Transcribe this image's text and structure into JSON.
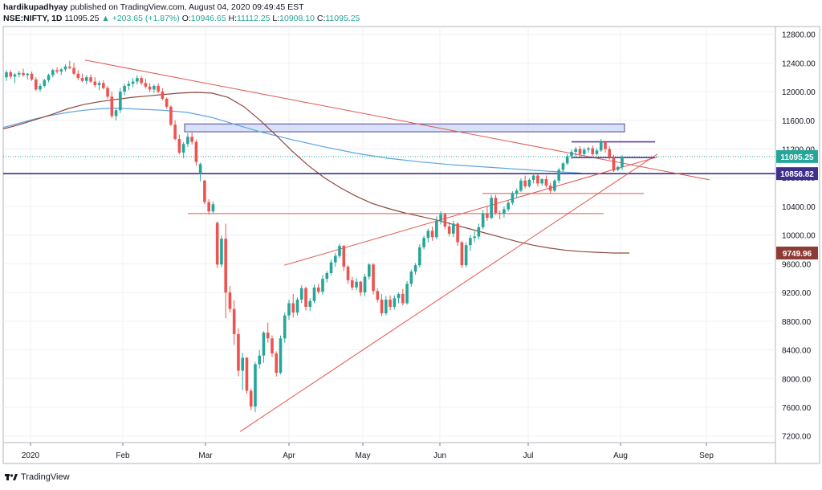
{
  "header": {
    "author": "hardikupadhyay",
    "published": "published on TradingView.com, August 04, 2020 09:49:45 EST",
    "symbol": "NSE:NIFTY, 1D",
    "last": "11095.25",
    "arrow": "▲",
    "change": "+203.65 (+1.87%)",
    "o_label": "O:",
    "o": "10946.65",
    "h_label": "H:",
    "h": "11112.25",
    "l_label": "L:",
    "l": "10908.10",
    "c_label": "C:",
    "c": "11095.25"
  },
  "footer": {
    "brand": "TradingView"
  },
  "colors": {
    "up": "#26a69a",
    "down": "#ef5350",
    "ma_blue": "#5aa5e0",
    "ma_brown": "#8d4a3c",
    "trend": "#e0584f",
    "purple": "#5b3f9e",
    "zone_fill": "#c9d8f5"
  },
  "chart_data": {
    "type": "candlestick",
    "ylim": [
      7100,
      12900
    ],
    "y_ticks": [
      "7200.00",
      "7600.00",
      "8000.00",
      "8400.00",
      "8800.00",
      "9200.00",
      "9600.00",
      "10000.00",
      "10400.00",
      "10800.00",
      "11200.00",
      "11600.00",
      "12000.00",
      "12400.00",
      "12800.00"
    ],
    "x_ticks": [
      "2020",
      "Feb",
      "Mar",
      "Apr",
      "May",
      "Jun",
      "Jul",
      "Aug",
      "Sep"
    ],
    "price_labels": [
      {
        "value": 11095.25,
        "text": "11095.25",
        "color": "#26a69a"
      },
      {
        "value": 10856.82,
        "text": "10856.82",
        "color": "#3f2f8f"
      },
      {
        "value": 9749.96,
        "text": "9749.96",
        "color": "#8d3b35"
      }
    ],
    "candles": [
      [
        12200,
        12300,
        12150,
        12270
      ],
      [
        12270,
        12300,
        12180,
        12210
      ],
      [
        12210,
        12260,
        12120,
        12240
      ],
      [
        12240,
        12290,
        12200,
        12260
      ],
      [
        12260,
        12320,
        12210,
        12230
      ],
      [
        12230,
        12260,
        12170,
        12250
      ],
      [
        12250,
        12280,
        12150,
        12170
      ],
      [
        12170,
        12200,
        12010,
        12030
      ],
      [
        12030,
        12110,
        12000,
        12080
      ],
      [
        12080,
        12180,
        12060,
        12160
      ],
      [
        12160,
        12250,
        12130,
        12230
      ],
      [
        12230,
        12320,
        12200,
        12300
      ],
      [
        12300,
        12340,
        12250,
        12280
      ],
      [
        12280,
        12330,
        12230,
        12310
      ],
      [
        12310,
        12380,
        12280,
        12350
      ],
      [
        12350,
        12430,
        12310,
        12330
      ],
      [
        12330,
        12400,
        12230,
        12250
      ],
      [
        12250,
        12300,
        12160,
        12190
      ],
      [
        12190,
        12250,
        12130,
        12150
      ],
      [
        12150,
        12230,
        12100,
        12200
      ],
      [
        12200,
        12240,
        12120,
        12140
      ],
      [
        12140,
        12200,
        12060,
        12090
      ],
      [
        12090,
        12150,
        12020,
        12120
      ],
      [
        12120,
        12160,
        12030,
        12050
      ],
      [
        12050,
        12080,
        11900,
        11930
      ],
      [
        11930,
        12000,
        11630,
        11660
      ],
      [
        11660,
        11760,
        11600,
        11740
      ],
      [
        11740,
        12050,
        11700,
        12000
      ],
      [
        12000,
        12110,
        11950,
        12080
      ],
      [
        12080,
        12150,
        12020,
        12110
      ],
      [
        12110,
        12190,
        12060,
        12140
      ],
      [
        12140,
        12230,
        12100,
        12190
      ],
      [
        12190,
        12220,
        12090,
        12120
      ],
      [
        12120,
        12180,
        12040,
        12070
      ],
      [
        12070,
        12120,
        11990,
        12030
      ],
      [
        12030,
        12100,
        11980,
        12080
      ],
      [
        12080,
        12120,
        11980,
        12000
      ],
      [
        12000,
        12050,
        11880,
        11900
      ],
      [
        11900,
        11920,
        11760,
        11790
      ],
      [
        11790,
        11810,
        11520,
        11540
      ],
      [
        11540,
        11600,
        11320,
        11340
      ],
      [
        11340,
        11400,
        11130,
        11150
      ],
      [
        11150,
        11300,
        11070,
        11270
      ],
      [
        11270,
        11420,
        11230,
        11370
      ],
      [
        11370,
        11430,
        11260,
        11300
      ],
      [
        11300,
        11330,
        10970,
        11020
      ],
      [
        10870,
        11010,
        10750,
        10990
      ],
      [
        10760,
        10770,
        10430,
        10460
      ],
      [
        10460,
        10500,
        10290,
        10330
      ],
      [
        10330,
        10470,
        10300,
        10430
      ],
      [
        10170,
        10190,
        9540,
        9590
      ],
      [
        9590,
        9990,
        9550,
        9950
      ],
      [
        9950,
        10160,
        8840,
        9200
      ],
      [
        9200,
        9290,
        8920,
        8970
      ],
      [
        8970,
        9090,
        8470,
        8620
      ],
      [
        8620,
        8700,
        8030,
        8110
      ],
      [
        8110,
        8360,
        7840,
        8290
      ],
      [
        8290,
        8300,
        7790,
        7830
      ],
      [
        7830,
        7860,
        7560,
        7610
      ],
      [
        7610,
        8230,
        7530,
        8200
      ],
      [
        8200,
        8400,
        8140,
        8320
      ],
      [
        8320,
        8660,
        8220,
        8640
      ],
      [
        8640,
        8780,
        8500,
        8560
      ],
      [
        8560,
        8600,
        8300,
        8350
      ],
      [
        8350,
        8380,
        8030,
        8080
      ],
      [
        8080,
        8600,
        8060,
        8560
      ],
      [
        8560,
        8920,
        8500,
        8880
      ],
      [
        8880,
        9100,
        8820,
        9050
      ],
      [
        9050,
        9180,
        8850,
        8920
      ],
      [
        8920,
        9130,
        8880,
        9100
      ],
      [
        9100,
        9300,
        9050,
        9260
      ],
      [
        9260,
        9280,
        8950,
        9000
      ],
      [
        9000,
        9120,
        8940,
        9080
      ],
      [
        9080,
        9310,
        9050,
        9270
      ],
      [
        9270,
        9320,
        9180,
        9210
      ],
      [
        9210,
        9440,
        9170,
        9390
      ],
      [
        9390,
        9500,
        9340,
        9470
      ],
      [
        9470,
        9660,
        9440,
        9620
      ],
      [
        9620,
        9750,
        9560,
        9710
      ],
      [
        9710,
        9880,
        9680,
        9850
      ],
      [
        9850,
        9860,
        9500,
        9560
      ],
      [
        9560,
        9580,
        9320,
        9370
      ],
      [
        9370,
        9420,
        9230,
        9270
      ],
      [
        9270,
        9400,
        9230,
        9350
      ],
      [
        9350,
        9360,
        9150,
        9200
      ],
      [
        9200,
        9460,
        9150,
        9420
      ],
      [
        9420,
        9610,
        9380,
        9590
      ],
      [
        9590,
        9610,
        9170,
        9220
      ],
      [
        9220,
        9260,
        9060,
        9100
      ],
      [
        9100,
        9180,
        8870,
        8910
      ],
      [
        8910,
        9150,
        8880,
        9100
      ],
      [
        9100,
        9160,
        8950,
        9000
      ],
      [
        9000,
        9160,
        8960,
        9120
      ],
      [
        9120,
        9200,
        9050,
        9180
      ],
      [
        9180,
        9250,
        9020,
        9050
      ],
      [
        9050,
        9360,
        9030,
        9320
      ],
      [
        9320,
        9520,
        9280,
        9490
      ],
      [
        9490,
        9610,
        9450,
        9580
      ],
      [
        9580,
        9870,
        9550,
        9830
      ],
      [
        9830,
        9990,
        9800,
        9960
      ],
      [
        9960,
        10090,
        9900,
        10060
      ],
      [
        10060,
        10120,
        9920,
        9970
      ],
      [
        9970,
        10260,
        9940,
        10200
      ],
      [
        10200,
        10330,
        10150,
        10290
      ],
      [
        10290,
        10310,
        10080,
        10120
      ],
      [
        10120,
        10180,
        9980,
        10020
      ],
      [
        10020,
        10200,
        9970,
        10160
      ],
      [
        10160,
        10180,
        9850,
        9900
      ],
      [
        9900,
        9920,
        9540,
        9580
      ],
      [
        9580,
        9900,
        9550,
        9860
      ],
      [
        9860,
        10000,
        9780,
        9960
      ],
      [
        9960,
        10050,
        9900,
        9980
      ],
      [
        9980,
        10160,
        9940,
        10110
      ],
      [
        10110,
        10350,
        10080,
        10300
      ],
      [
        10300,
        10400,
        10200,
        10240
      ],
      [
        10240,
        10560,
        10220,
        10520
      ],
      [
        10520,
        10560,
        10280,
        10310
      ],
      [
        10310,
        10340,
        10220,
        10300
      ],
      [
        10300,
        10400,
        10240,
        10360
      ],
      [
        10360,
        10480,
        10330,
        10450
      ],
      [
        10450,
        10610,
        10420,
        10580
      ],
      [
        10580,
        10650,
        10520,
        10620
      ],
      [
        10620,
        10790,
        10600,
        10760
      ],
      [
        10760,
        10830,
        10650,
        10680
      ],
      [
        10680,
        10790,
        10660,
        10770
      ],
      [
        10770,
        10870,
        10720,
        10830
      ],
      [
        10830,
        10850,
        10680,
        10720
      ],
      [
        10720,
        10790,
        10690,
        10780
      ],
      [
        10780,
        10830,
        10660,
        10690
      ],
      [
        10690,
        10730,
        10580,
        10620
      ],
      [
        10620,
        10780,
        10600,
        10760
      ],
      [
        10760,
        10940,
        10720,
        10910
      ],
      [
        10910,
        11020,
        10880,
        11000
      ],
      [
        11000,
        11130,
        10980,
        11100
      ],
      [
        11100,
        11190,
        11060,
        11160
      ],
      [
        11160,
        11230,
        11100,
        11200
      ],
      [
        11200,
        11240,
        11090,
        11130
      ],
      [
        11130,
        11220,
        11110,
        11190
      ],
      [
        11190,
        11230,
        11150,
        11210
      ],
      [
        11210,
        11250,
        11100,
        11130
      ],
      [
        11130,
        11210,
        11110,
        11180
      ],
      [
        11180,
        11340,
        11160,
        11300
      ],
      [
        11300,
        11320,
        11150,
        11200
      ],
      [
        11200,
        11240,
        11050,
        11080
      ],
      [
        11080,
        11120,
        10880,
        10900
      ],
      [
        10910,
        10970,
        10890,
        10950
      ],
      [
        10946.65,
        11112.25,
        10908.1,
        11095.25
      ]
    ],
    "ma_blue": [
      [
        0,
        11500
      ],
      [
        20,
        11560
      ],
      [
        40,
        11620
      ],
      [
        60,
        11670
      ],
      [
        80,
        11710
      ],
      [
        100,
        11740
      ],
      [
        120,
        11760
      ],
      [
        140,
        11770
      ],
      [
        160,
        11760
      ],
      [
        180,
        11750
      ],
      [
        200,
        11740
      ],
      [
        230,
        11710
      ],
      [
        260,
        11640
      ],
      [
        290,
        11540
      ],
      [
        320,
        11440
      ],
      [
        360,
        11330
      ],
      [
        400,
        11230
      ],
      [
        440,
        11140
      ],
      [
        480,
        11070
      ],
      [
        520,
        11020
      ],
      [
        560,
        10980
      ],
      [
        600,
        10950
      ],
      [
        640,
        10920
      ],
      [
        680,
        10890
      ],
      [
        720,
        10865
      ]
    ],
    "ma_brown": [
      [
        0,
        11480
      ],
      [
        20,
        11540
      ],
      [
        40,
        11610
      ],
      [
        60,
        11680
      ],
      [
        80,
        11760
      ],
      [
        100,
        11820
      ],
      [
        120,
        11860
      ],
      [
        140,
        11890
      ],
      [
        160,
        11920
      ],
      [
        180,
        11940
      ],
      [
        200,
        11960
      ],
      [
        220,
        11980
      ],
      [
        240,
        11990
      ],
      [
        260,
        11980
      ],
      [
        280,
        11920
      ],
      [
        300,
        11790
      ],
      [
        320,
        11600
      ],
      [
        340,
        11390
      ],
      [
        360,
        11170
      ],
      [
        380,
        10970
      ],
      [
        400,
        10800
      ],
      [
        420,
        10660
      ],
      [
        440,
        10540
      ],
      [
        460,
        10440
      ],
      [
        480,
        10370
      ],
      [
        500,
        10310
      ],
      [
        520,
        10260
      ],
      [
        540,
        10210
      ],
      [
        560,
        10150
      ],
      [
        580,
        10090
      ],
      [
        600,
        10030
      ],
      [
        620,
        9970
      ],
      [
        640,
        9910
      ],
      [
        660,
        9860
      ],
      [
        680,
        9820
      ],
      [
        700,
        9790
      ],
      [
        720,
        9770
      ],
      [
        740,
        9760
      ],
      [
        760,
        9750
      ],
      [
        780,
        9749.96
      ]
    ],
    "trendlines": [
      {
        "from": [
          102,
          12440
        ],
        "to": [
          880,
          10770
        ],
        "color": "#e0584f"
      },
      {
        "from": [
          295,
          7260
        ],
        "to": [
          815,
          11130
        ],
        "color": "#e0584f"
      },
      {
        "from": [
          350,
          9580
        ],
        "to": [
          815,
          11090
        ],
        "color": "#e0584f"
      },
      {
        "from": [
          230,
          10300
        ],
        "to": [
          748,
          10300
        ],
        "color": "#e0584f"
      },
      {
        "from": [
          597,
          10580
        ],
        "to": [
          798,
          10580
        ],
        "color": "#e0584f"
      },
      {
        "from": [
          708,
          11300
        ],
        "to": [
          812,
          11300
        ],
        "color": "#5b3f9e"
      },
      {
        "from": [
          708,
          11080
        ],
        "to": [
          812,
          11080
        ],
        "color": "#5b3f9e"
      }
    ],
    "zone": {
      "x0": 230,
      "x1": 778,
      "y0": 11440,
      "y1": 11550
    },
    "hline": 10856.82,
    "dotted": 11095.25
  }
}
